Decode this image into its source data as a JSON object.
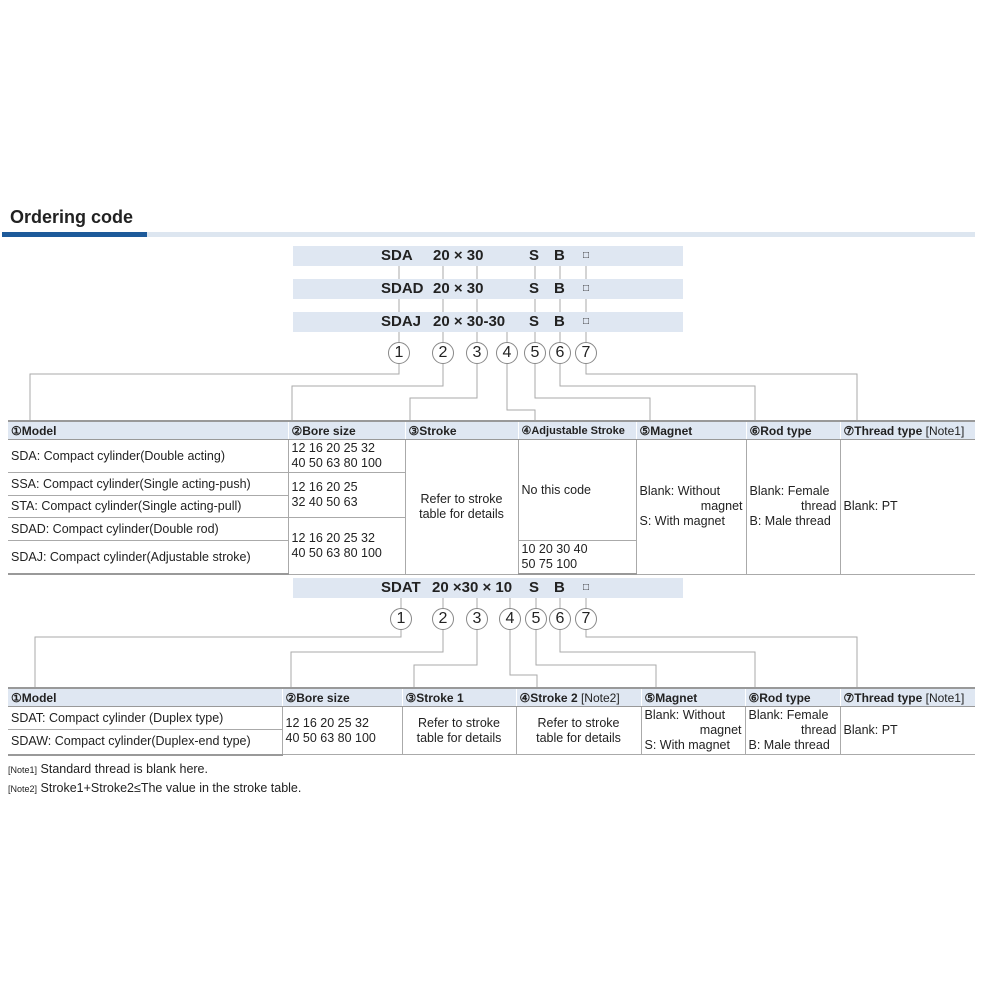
{
  "section_title": "Ordering code",
  "codes1": [
    {
      "model": "SDA",
      "bore": "20 × 30",
      "s": "S",
      "b": "B",
      "sq": "□"
    },
    {
      "model": "SDAD",
      "bore": "20 × 30",
      "s": "S",
      "b": "B",
      "sq": "□"
    },
    {
      "model": "SDAJ",
      "bore": "20 × 30-30",
      "s": "S",
      "b": "B",
      "sq": "□"
    }
  ],
  "circles": [
    "1",
    "2",
    "3",
    "4",
    "5",
    "6",
    "7"
  ],
  "table1": {
    "headers": [
      "①Model",
      "②Bore size",
      "③Stroke",
      "④Adjustable Stroke",
      "⑤Magnet",
      "⑥Rod type",
      "⑦Thread type"
    ],
    "note_ref": "[Note1]",
    "models": [
      "SDA: Compact cylinder(Double acting)",
      "SSA: Compact cylinder(Single acting-push)",
      "STA: Compact cylinder(Single acting-pull)",
      "SDAD: Compact cylinder(Double rod)",
      "SDAJ: Compact cylinder(Adjustable stroke)"
    ],
    "bore1": [
      "12 16  20  25  32",
      "40 50  63  80 100"
    ],
    "bore2": [
      "12 16  20  25",
      "32  40 50  63"
    ],
    "bore3": [
      "12 16  20  25  32",
      "40 50  63  80 100"
    ],
    "stroke": [
      "Refer to stroke",
      "table for details"
    ],
    "adj_none": "No this code",
    "adj_values": [
      "10 20 30 40",
      "50 75 100"
    ],
    "magnet": [
      "Blank: Without",
      "magnet",
      "S: With magnet"
    ],
    "rod": [
      "Blank: Female",
      "thread",
      "B: Male thread"
    ],
    "thread": "Blank: PT"
  },
  "code2": {
    "model": "SDAT",
    "bore": "20 ×30 × 10",
    "s": "S",
    "b": "B",
    "sq": "□"
  },
  "table2": {
    "headers": [
      "①Model",
      "②Bore size",
      "③Stroke 1",
      "④Stroke 2",
      "⑤Magnet",
      "⑥Rod type",
      "⑦Thread type"
    ],
    "note2_ref": "[Note2]",
    "note1_ref": "[Note1]",
    "models": [
      "SDAT: Compact cylinder (Duplex type)",
      "SDAW: Compact cylinder(Duplex-end type)"
    ],
    "bore": [
      "12 16  20  25  32",
      "40 50  63  80 100"
    ],
    "stroke1": [
      "Refer to stroke",
      "table for details"
    ],
    "stroke2": [
      "Refer to stroke",
      "table for details"
    ],
    "magnet": [
      "Blank: Without",
      "magnet",
      "S: With magnet"
    ],
    "rod": [
      "Blank: Female",
      "thread",
      "B: Male thread"
    ],
    "thread": "Blank: PT"
  },
  "notes": [
    {
      "ref": "[Note1]",
      "text": "Standard thread is blank here."
    },
    {
      "ref": "[Note2]",
      "text": "Stroke1+Stroke2≤The value in the stroke table."
    }
  ]
}
